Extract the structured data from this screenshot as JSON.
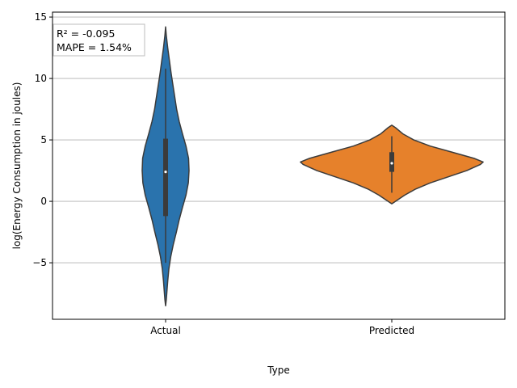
{
  "chart_data": {
    "type": "violin",
    "xlabel": "Type",
    "ylabel": "log(Energy Consumption in joules)",
    "categories": [
      "Actual",
      "Predicted"
    ],
    "ylim": [
      -9.6,
      15.4
    ],
    "yticks": [
      -5,
      0,
      5,
      10,
      15
    ],
    "ytick_labels": [
      "−5",
      "0",
      "5",
      "10",
      "15"
    ],
    "grid": "y",
    "annotation": {
      "lines": [
        "R² = -0.095",
        "MAPE = 1.54%"
      ],
      "placement": "top-left"
    },
    "series": [
      {
        "category": "Actual",
        "color": "#2a73ad",
        "profile": [
          [
            14.2,
            0.0
          ],
          [
            13.5,
            0.03
          ],
          [
            12.5,
            0.09
          ],
          [
            11.5,
            0.16
          ],
          [
            10.5,
            0.23
          ],
          [
            9.5,
            0.31
          ],
          [
            8.5,
            0.39
          ],
          [
            7.5,
            0.47
          ],
          [
            6.5,
            0.58
          ],
          [
            5.5,
            0.72
          ],
          [
            4.5,
            0.87
          ],
          [
            3.5,
            0.98
          ],
          [
            2.5,
            1.0
          ],
          [
            1.5,
            0.97
          ],
          [
            0.5,
            0.87
          ],
          [
            -0.5,
            0.72
          ],
          [
            -1.5,
            0.58
          ],
          [
            -2.5,
            0.46
          ],
          [
            -3.5,
            0.33
          ],
          [
            -4.5,
            0.22
          ],
          [
            -5.5,
            0.14
          ],
          [
            -6.5,
            0.09
          ],
          [
            -7.5,
            0.05
          ],
          [
            -8.0,
            0.03
          ],
          [
            -8.5,
            0.0
          ]
        ],
        "whisker": [
          -5.0,
          10.8
        ],
        "q1": -1.2,
        "q3": 5.1,
        "median": 2.4
      },
      {
        "category": "Predicted",
        "color": "#e6812b",
        "profile": [
          [
            6.2,
            0.0
          ],
          [
            6.0,
            0.04
          ],
          [
            5.5,
            0.12
          ],
          [
            5.0,
            0.24
          ],
          [
            4.5,
            0.42
          ],
          [
            4.0,
            0.66
          ],
          [
            3.5,
            0.9
          ],
          [
            3.2,
            1.0
          ],
          [
            3.0,
            0.97
          ],
          [
            2.5,
            0.82
          ],
          [
            2.0,
            0.62
          ],
          [
            1.5,
            0.42
          ],
          [
            1.0,
            0.26
          ],
          [
            0.5,
            0.14
          ],
          [
            0.0,
            0.04
          ],
          [
            -0.2,
            0.0
          ]
        ],
        "whisker": [
          0.7,
          5.3
        ],
        "q1": 2.4,
        "q3": 4.0,
        "median": 3.1
      }
    ]
  }
}
